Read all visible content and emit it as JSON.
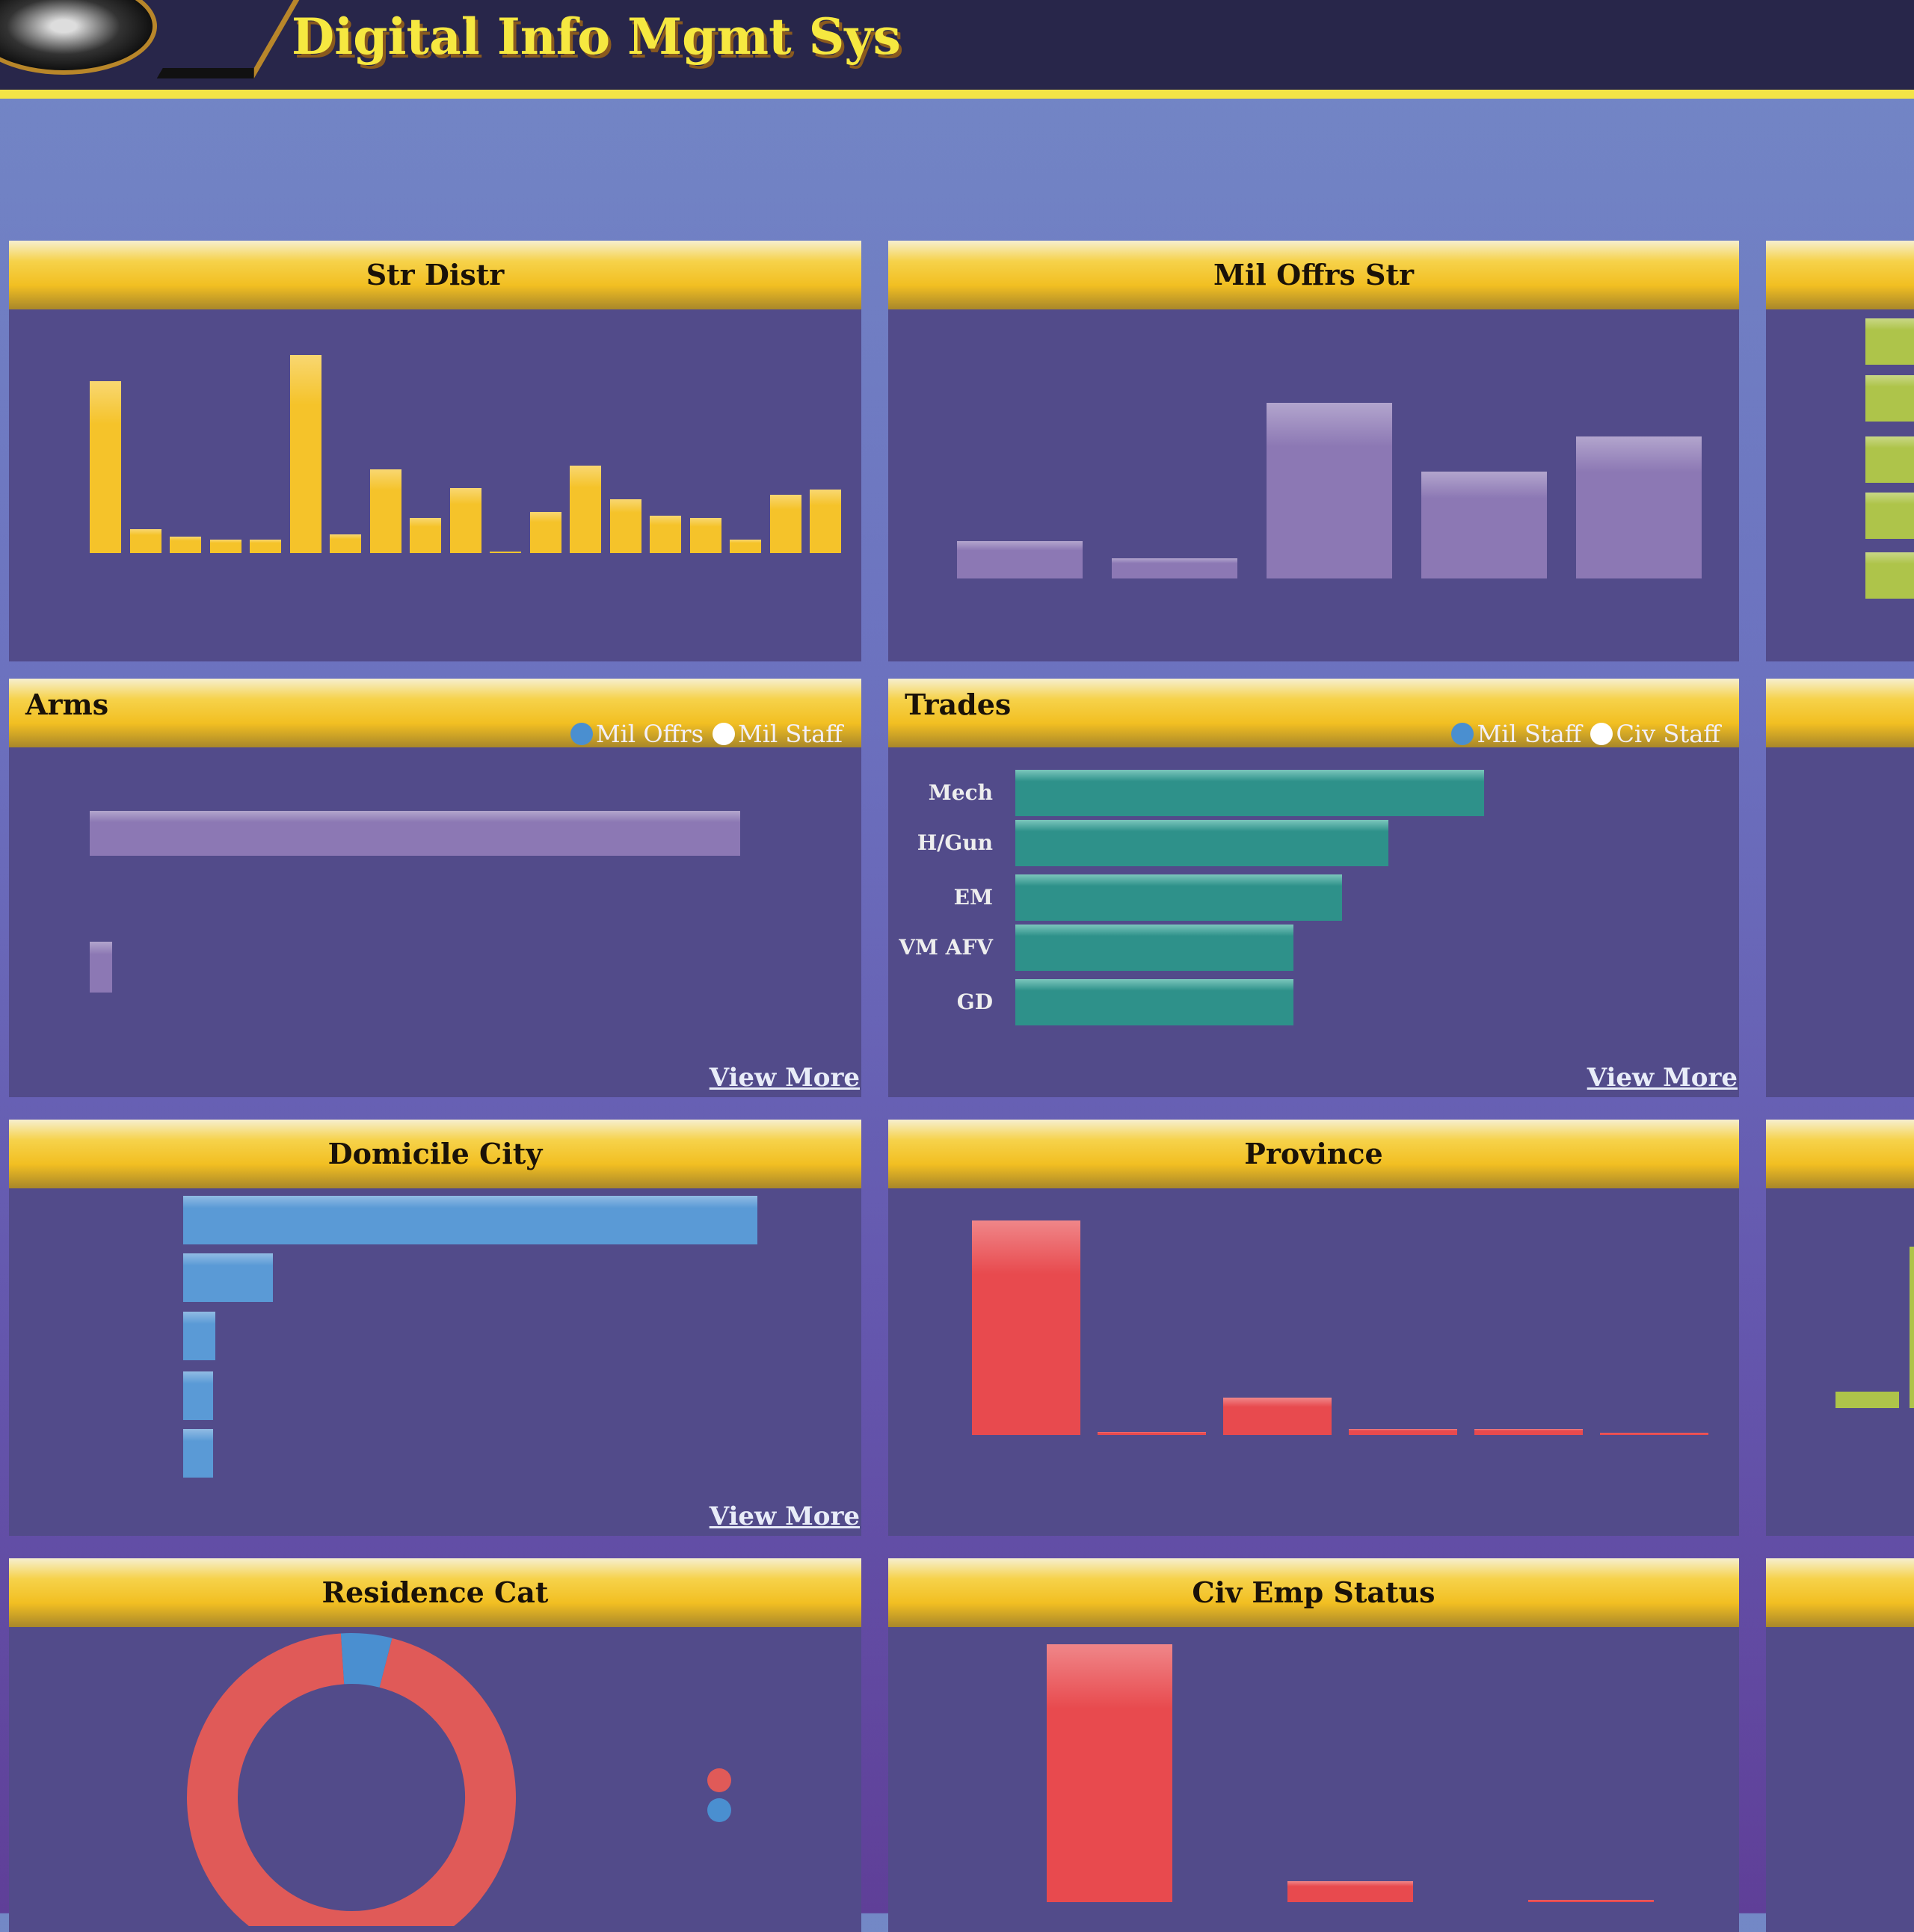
{
  "header": {
    "title": "Digital Info Mgmt Sys"
  },
  "panels": {
    "str_distr": {
      "title": "Str Distr"
    },
    "mil_offrs_str": {
      "title": "Mil Offrs Str"
    },
    "arms": {
      "title": "Arms",
      "legend": [
        "Mil Offrs",
        "Mil Staff"
      ],
      "view_more": "View More"
    },
    "trades": {
      "title": "Trades",
      "legend": [
        "Mil Staff",
        "Civ Staff"
      ],
      "view_more": "View More"
    },
    "domicile_city": {
      "title": "Domicile City",
      "view_more": "View More"
    },
    "province": {
      "title": "Province"
    },
    "residence_cat": {
      "title": "Residence Cat"
    },
    "civ_emp_status": {
      "title": "Civ Emp Status"
    }
  },
  "colors": {
    "yellow": "#f5c32a",
    "purple": "#8c78b4",
    "teal": "#2e918a",
    "blue": "#5a9ad6",
    "red": "#e84a4e",
    "green": "#aec44a"
  },
  "chart_data": [
    {
      "type": "bar",
      "title": "Str Distr",
      "values": [
        230,
        32,
        22,
        18,
        18,
        265,
        25,
        112,
        47,
        87,
        2,
        55,
        117,
        72,
        50,
        47,
        18,
        78,
        85
      ]
    },
    {
      "type": "bar",
      "title": "Mil Offrs Str",
      "values": [
        50,
        27,
        235,
        143,
        190
      ]
    },
    {
      "type": "bar",
      "title": "Arms",
      "orientation": "horizontal",
      "values": [
        870,
        1
      ]
    },
    {
      "type": "bar",
      "title": "Trades",
      "orientation": "horizontal",
      "categories": [
        "Mech",
        "H/Gun",
        "EM",
        "VM AFV",
        "GD"
      ],
      "values": [
        627,
        499,
        437,
        372,
        372
      ]
    },
    {
      "type": "bar",
      "title": "Domicile City",
      "orientation": "horizontal",
      "values": [
        768,
        120,
        43,
        40,
        40
      ]
    },
    {
      "type": "bar",
      "title": "Province",
      "values": [
        287,
        4,
        50,
        8,
        8,
        3
      ]
    },
    {
      "type": "pie",
      "title": "Residence Cat",
      "donut": true,
      "values": [
        95,
        5
      ],
      "colors": [
        "#e05a58",
        "#4a8fd0"
      ]
    },
    {
      "type": "bar",
      "title": "Civ Emp Status",
      "values": [
        345,
        28,
        3
      ]
    }
  ]
}
